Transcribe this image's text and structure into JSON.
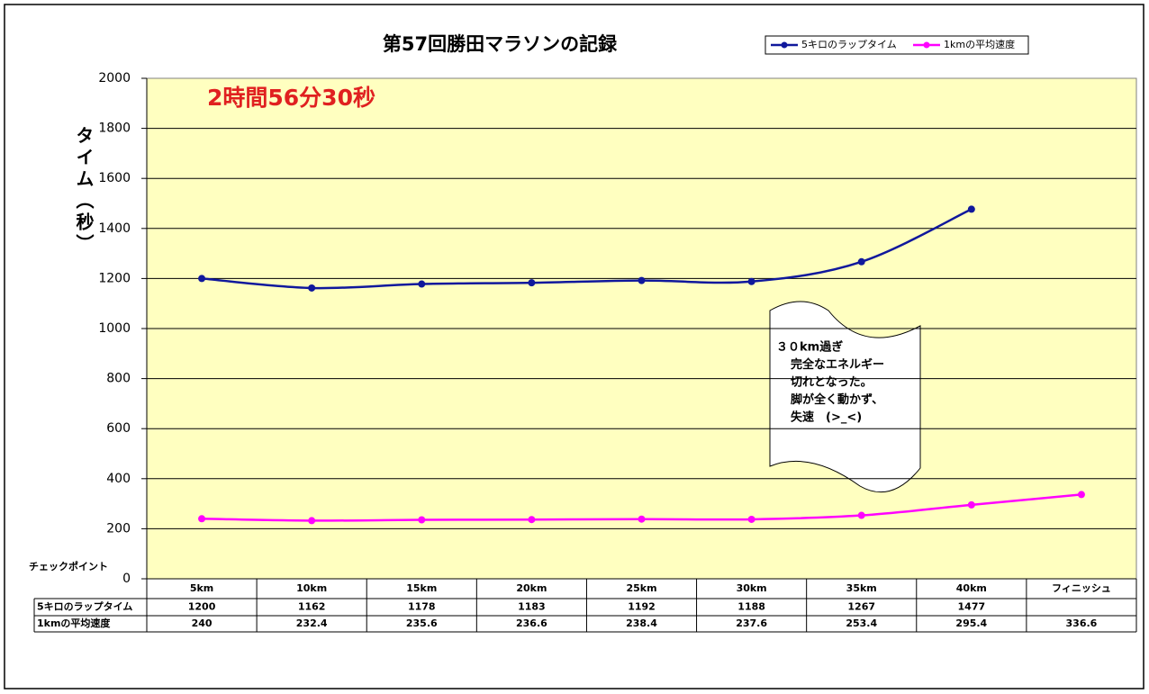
{
  "chart_data": {
    "type": "line",
    "title": "第57回勝田マラソンの記録",
    "annotation": "2時間56分30秒",
    "y_label": "タイム（秒）",
    "x_label": "チェックポイント",
    "callout": [
      "３０km過ぎ",
      "完全なエネルギー",
      "切れとなった。",
      "脚が全く動かず、",
      "失速　(>_<)"
    ],
    "categories": [
      "5km",
      "10km",
      "15km",
      "20km",
      "25km",
      "30km",
      "35km",
      "40km",
      "フィニッシュ"
    ],
    "series": [
      {
        "name": "5キロのラップタイム",
        "color": "#10189c",
        "values": [
          1200,
          1162,
          1178,
          1183,
          1192,
          1188,
          1267,
          1477,
          null
        ]
      },
      {
        "name": "1kmの平均速度",
        "color": "#ff00ff",
        "values": [
          240,
          232.4,
          235.6,
          236.6,
          238.4,
          237.6,
          253.4,
          295.4,
          336.6
        ]
      }
    ],
    "ylim": [
      0,
      2000
    ],
    "yticks": [
      0,
      200,
      400,
      600,
      800,
      1000,
      1200,
      1400,
      1600,
      1800,
      2000
    ],
    "grid": true,
    "legend": "top-right",
    "background": "#ffffc0"
  }
}
